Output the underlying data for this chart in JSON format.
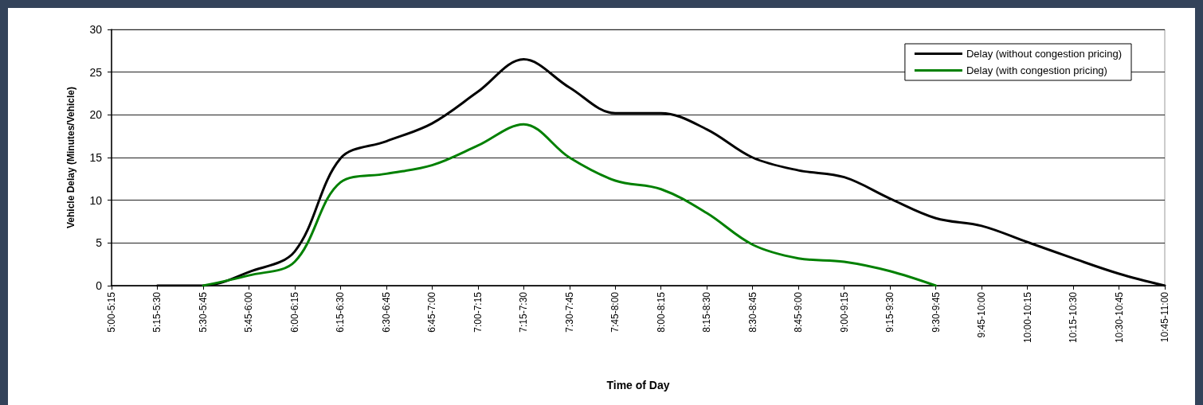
{
  "chart_data": {
    "type": "line",
    "xlabel": "Time of Day",
    "ylabel": "Vehicle Delay (Minutes/Vehicle)",
    "categories": [
      "5:00-5:15",
      "5:15-5:30",
      "5:30-5:45",
      "5:45-6:00",
      "6:00-6:15",
      "6:15-6:30",
      "6:30-6:45",
      "6:45-7:00",
      "7:00-7:15",
      "7:15-7:30",
      "7:30-7:45",
      "7:45-8:00",
      "8:00-8:15",
      "8:15-8:30",
      "8:30-8:45",
      "8:45-9:00",
      "9:00-9:15",
      "9:15-9:30",
      "9:30-9:45",
      "9:45-10:00",
      "10:00-10:15",
      "10:15-10:30",
      "10:30-10:45",
      "10:45-11:00"
    ],
    "series": [
      {
        "name": "Delay (without congestion pricing)",
        "color": "#000000",
        "values": [
          null,
          0,
          0,
          1.6,
          4.0,
          14.9,
          16.9,
          19.0,
          22.7,
          26.5,
          23.2,
          20.2,
          20.2,
          18.3,
          15.0,
          13.5,
          12.7,
          10.2,
          7.9,
          7.0,
          5.1,
          3.2,
          1.4,
          0
        ]
      },
      {
        "name": "Delay (with congestion pricing)",
        "color": "#008000",
        "values": [
          null,
          null,
          0,
          1.2,
          2.8,
          12.1,
          13.1,
          14.1,
          16.4,
          18.9,
          15.0,
          12.3,
          11.3,
          8.5,
          4.8,
          3.2,
          2.8,
          1.7,
          0,
          null,
          null,
          null,
          null,
          null
        ]
      }
    ],
    "ylim": [
      0,
      30
    ],
    "yticks": [
      0,
      5,
      10,
      15,
      20,
      25,
      30
    ],
    "grid": "y",
    "legend": "top right",
    "marker": "none",
    "line_style": "solid"
  }
}
